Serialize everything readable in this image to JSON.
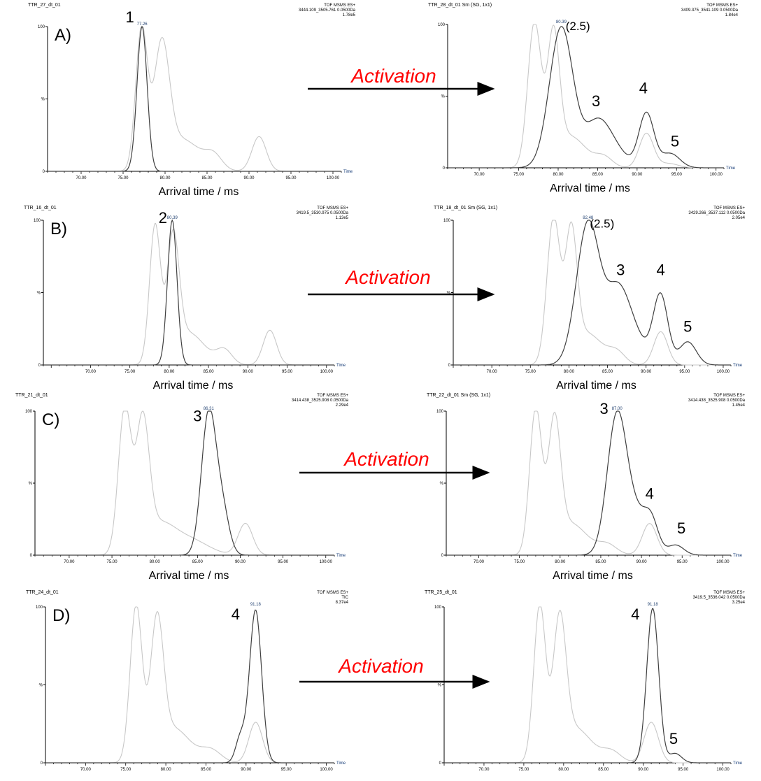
{
  "figure": {
    "activation_label": "Activation",
    "xlabel": "Arrival time / ms",
    "ylabel": "%",
    "time_label": "Time",
    "colors": {
      "background": "#ffffff",
      "trace_dark": "#404040",
      "trace_light": "#c8c8c8",
      "activation_text": "#ff0000",
      "arrow": "#000000",
      "axis": "#000000",
      "peak_label": "#1f3f6f"
    }
  },
  "chart_data": [
    {
      "id": "A-left",
      "row_label": "A)",
      "type": "line",
      "header_left": "TTR_27_dt_01",
      "header_right": [
        "TOF MSMS ES+",
        "3444.109_3505.761 0.0500Da",
        "1.78e5"
      ],
      "xlim": [
        66,
        101
      ],
      "ylim": [
        0,
        100
      ],
      "xticks": [
        "70.00",
        "75.00",
        "80.00",
        "85.00",
        "90.00",
        "95.00",
        "100.00"
      ],
      "yticks": [
        "0",
        "%",
        "100"
      ],
      "peak_value_label": {
        "text": "77.26",
        "x": 77.26
      },
      "annotations": [
        {
          "text": "1",
          "x": 75.8,
          "y": 103
        }
      ],
      "series": [
        {
          "role": "dark",
          "peaks": [
            [
              77.26,
              100,
              0.6
            ]
          ]
        },
        {
          "role": "light",
          "peaks": [
            [
              77.2,
              97,
              0.7
            ],
            [
              79.6,
              80,
              0.9
            ],
            [
              82.0,
              22,
              2.2
            ],
            [
              85.8,
              9,
              1.0
            ],
            [
              91.2,
              24,
              0.85
            ]
          ]
        }
      ]
    },
    {
      "id": "A-right",
      "row_label": "",
      "type": "line",
      "header_left": "TTR_28_dt_01 Sm (SG, 1x1)",
      "header_right": [
        "TOF MSMS ES+",
        "3409.375_3541.109 0.0500Da",
        "1.84e4"
      ],
      "xlim": [
        66,
        101
      ],
      "ylim": [
        0,
        100
      ],
      "xticks": [
        "70.00",
        "75.00",
        "80.00",
        "85.00",
        "90.00",
        "95.00",
        "100.00"
      ],
      "yticks": [
        "0",
        "%",
        "100"
      ],
      "peak_value_label": {
        "text": "80.39",
        "x": 80.39
      },
      "annotations": [
        {
          "text": "(2.5)",
          "x": 82.5,
          "y": 96
        },
        {
          "text": "3",
          "x": 84.8,
          "y": 43
        },
        {
          "text": "4",
          "x": 90.8,
          "y": 52
        },
        {
          "text": "5",
          "x": 94.8,
          "y": 15
        }
      ],
      "series": [
        {
          "role": "dark",
          "peaks": [
            [
              80.4,
              98,
              1.5
            ],
            [
              84.9,
              30,
              1.6
            ],
            [
              87.2,
              10,
              1.6
            ],
            [
              91.18,
              38,
              0.95
            ],
            [
              94.2,
              10,
              1.2
            ]
          ]
        },
        {
          "role": "light",
          "peaks": [
            [
              77.0,
              100,
              0.85
            ],
            [
              79.4,
              85,
              0.75
            ],
            [
              81.5,
              22,
              2.0
            ],
            [
              85.8,
              7,
              1.1
            ],
            [
              91.18,
              24,
              0.9
            ],
            [
              94.0,
              3,
              1.2
            ]
          ]
        }
      ]
    },
    {
      "id": "B-left",
      "row_label": "B)",
      "type": "line",
      "header_left": "TTR_16_dt_01",
      "header_right": [
        "TOF MSMS ES+",
        "3419.5_3530.975 0.0500Da",
        "1.13e5"
      ],
      "xlim": [
        64,
        101
      ],
      "ylim": [
        0,
        100
      ],
      "xticks": [
        "70.00",
        "75.00",
        "80.00",
        "85.00",
        "90.00",
        "95.00",
        "100.00"
      ],
      "yticks": [
        "0",
        "%",
        "100"
      ],
      "peak_value_label": {
        "text": "80.39",
        "x": 80.39
      },
      "annotations": [
        {
          "text": "2",
          "x": 79.2,
          "y": 98
        }
      ],
      "series": [
        {
          "role": "dark",
          "peaks": [
            [
              80.39,
              100,
              0.6
            ]
          ]
        },
        {
          "role": "light",
          "peaks": [
            [
              78.2,
              95,
              0.7
            ],
            [
              80.5,
              80,
              0.75
            ],
            [
              82.5,
              22,
              2.0
            ],
            [
              87.0,
              10,
              1.0
            ],
            [
              92.8,
              24,
              0.85
            ]
          ]
        }
      ]
    },
    {
      "id": "B-right",
      "row_label": "",
      "type": "line",
      "header_left": "TTR_18_dt_01 Sm (SG, 1x1)",
      "header_right": [
        "TOF MSMS ES+",
        "3429.266_3537.112 0.0500Da",
        "2.05e4"
      ],
      "xlim": [
        65,
        101
      ],
      "ylim": [
        0,
        100
      ],
      "xticks": [
        "70.00",
        "75.00",
        "80.00",
        "85.00",
        "90.00",
        "95.00",
        "100.00"
      ],
      "yticks": [
        "0",
        "%",
        "100"
      ],
      "peak_value_label": {
        "text": "82.48",
        "x": 82.48
      },
      "annotations": [
        {
          "text": "(2.5)",
          "x": 84.3,
          "y": 95
        },
        {
          "text": "3",
          "x": 86.7,
          "y": 62
        },
        {
          "text": "4",
          "x": 91.9,
          "y": 62
        },
        {
          "text": "5",
          "x": 95.4,
          "y": 23
        }
      ],
      "series": [
        {
          "role": "dark",
          "peaks": [
            [
              82.48,
              98,
              1.5
            ],
            [
              86.2,
              46,
              1.5
            ],
            [
              88.4,
              18,
              1.6
            ],
            [
              91.87,
              48,
              0.95
            ],
            [
              95.4,
              16,
              1.1
            ]
          ]
        },
        {
          "role": "light",
          "peaks": [
            [
              78.0,
              100,
              0.85
            ],
            [
              80.3,
              83,
              0.75
            ],
            [
              82.3,
              22,
              2.0
            ],
            [
              86.2,
              8,
              1.1
            ],
            [
              91.9,
              23,
              0.9
            ]
          ]
        }
      ]
    },
    {
      "id": "C-left",
      "row_label": "C)",
      "type": "line",
      "header_left": "TTR_21_dt_01",
      "header_right": [
        "TOF MSMS ES+",
        "3414.438_3525.908 0.0500Da",
        "2.29e4"
      ],
      "xlim": [
        66,
        101
      ],
      "ylim": [
        0,
        100
      ],
      "xticks": [
        "70.00",
        "75.00",
        "80.00",
        "85.00",
        "90.00",
        "95.00",
        "100.00"
      ],
      "yticks": [
        "0",
        "%",
        "100"
      ],
      "peak_value_label": {
        "text": "86.31",
        "x": 86.31
      },
      "annotations": [
        {
          "text": "3",
          "x": 85.0,
          "y": 93
        }
      ],
      "series": [
        {
          "role": "dark",
          "peaks": [
            [
              86.31,
              98,
              0.85
            ],
            [
              87.9,
              30,
              0.8
            ]
          ]
        },
        {
          "role": "light",
          "peaks": [
            [
              76.5,
              100,
              0.75
            ],
            [
              78.6,
              84,
              0.75
            ],
            [
              80.5,
              22,
              2.0
            ],
            [
              84.5,
              9,
              2.0
            ],
            [
              90.6,
              22,
              0.85
            ]
          ]
        }
      ]
    },
    {
      "id": "C-right",
      "row_label": "",
      "type": "line",
      "header_left": "TTR_22_dt_01 Sm (SG, 1x1)",
      "header_right": [
        "TOF MSMS ES+",
        "3414.438_3525.908 0.0500Da",
        "1.45e4"
      ],
      "xlim": [
        66,
        101
      ],
      "ylim": [
        0,
        100
      ],
      "xticks": [
        "70.00",
        "75.00",
        "80.00",
        "85.00",
        "90.00",
        "95.00",
        "100.00"
      ],
      "yticks": [
        "0",
        "%",
        "100"
      ],
      "peak_value_label": {
        "text": "87.00",
        "x": 87.0
      },
      "annotations": [
        {
          "text": "3",
          "x": 85.4,
          "y": 98
        },
        {
          "text": "4",
          "x": 91.0,
          "y": 39
        },
        {
          "text": "5",
          "x": 94.9,
          "y": 15
        }
      ],
      "series": [
        {
          "role": "dark",
          "peaks": [
            [
              87.0,
              97,
              1.2
            ],
            [
              89.4,
              24,
              1.2
            ],
            [
              91.2,
              22,
              0.9
            ],
            [
              94.2,
              7,
              1.0
            ]
          ]
        },
        {
          "role": "light",
          "peaks": [
            [
              77.0,
              100,
              0.75
            ],
            [
              79.3,
              85,
              0.75
            ],
            [
              81.3,
              22,
              2.0
            ],
            [
              85.8,
              7,
              1.2
            ],
            [
              91.0,
              22,
              0.9
            ]
          ]
        }
      ]
    },
    {
      "id": "D-left",
      "row_label": "D)",
      "type": "line",
      "header_left": "TTR_24_dt_01",
      "header_right": [
        "TOF MSMS ES+",
        "TIC",
        "8.37e4"
      ],
      "xlim": [
        65,
        101
      ],
      "ylim": [
        0,
        100
      ],
      "xticks": [
        "70.00",
        "75.00",
        "80.00",
        "85.00",
        "90.00",
        "95.00",
        "100.00"
      ],
      "yticks": [
        "0",
        "%",
        "100"
      ],
      "peak_value_label": {
        "text": "91.18",
        "x": 91.18
      },
      "annotations": [
        {
          "text": "4",
          "x": 88.7,
          "y": 92
        }
      ],
      "series": [
        {
          "role": "dark",
          "peaks": [
            [
              91.18,
              98,
              0.75
            ],
            [
              89.3,
              16,
              0.6
            ]
          ]
        },
        {
          "role": "light",
          "peaks": [
            [
              76.3,
              100,
              0.75
            ],
            [
              78.9,
              84,
              0.8
            ],
            [
              81.0,
              22,
              2.0
            ],
            [
              85.6,
              8,
              1.3
            ],
            [
              91.2,
              26,
              0.85
            ]
          ]
        }
      ]
    },
    {
      "id": "D-right",
      "row_label": "",
      "type": "line",
      "header_left": "TTR_25_dt_01",
      "header_right": [
        "TOF MSMS ES+",
        "3419.5_3536.042 0.0500Da",
        "3.25e4"
      ],
      "xlim": [
        65,
        101
      ],
      "ylim": [
        0,
        100
      ],
      "xticks": [
        "70.00",
        "75.00",
        "80.00",
        "85.00",
        "90.00",
        "95.00",
        "100.00"
      ],
      "yticks": [
        "0",
        "%",
        "100"
      ],
      "peak_value_label": {
        "text": "91.18",
        "x": 91.18
      },
      "annotations": [
        {
          "text": "4",
          "x": 89.0,
          "y": 92
        },
        {
          "text": "5",
          "x": 93.8,
          "y": 12
        }
      ],
      "series": [
        {
          "role": "dark",
          "peaks": [
            [
              91.18,
              99,
              0.75
            ],
            [
              94.0,
              6,
              0.8
            ]
          ]
        },
        {
          "role": "light",
          "peaks": [
            [
              77.0,
              100,
              0.75
            ],
            [
              79.5,
              84,
              0.8
            ],
            [
              81.5,
              22,
              2.0
            ],
            [
              86.0,
              7,
              1.2
            ],
            [
              91.0,
              26,
              0.9
            ]
          ]
        }
      ]
    }
  ]
}
